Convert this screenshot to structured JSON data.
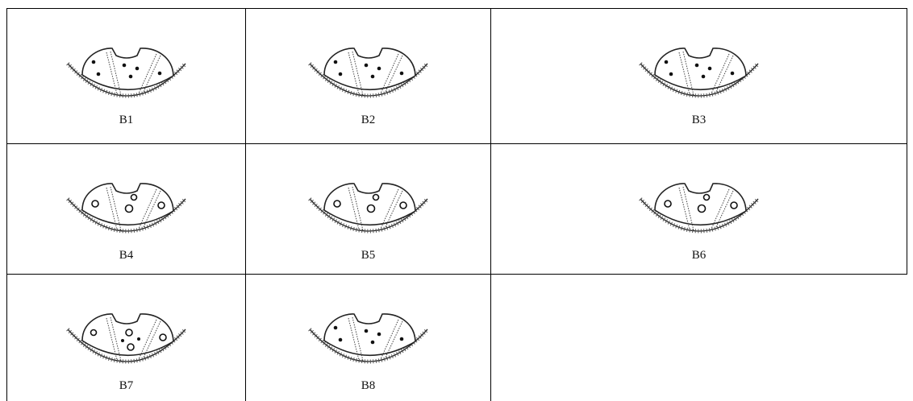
{
  "cells": [
    {
      "label": "B1"
    },
    {
      "label": "B2"
    },
    {
      "label": "B3"
    },
    {
      "label": "B4"
    },
    {
      "label": "B5"
    },
    {
      "label": "B6"
    },
    {
      "label": "B7"
    },
    {
      "label": "B8"
    }
  ]
}
